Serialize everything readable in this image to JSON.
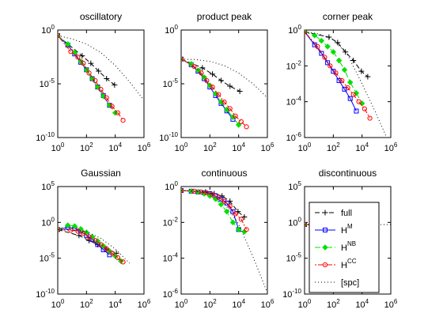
{
  "figure": {
    "legend": {
      "entries": [
        {
          "series": "full",
          "text": "full",
          "sup": ""
        },
        {
          "series": "HM",
          "text": "H",
          "sup": "M"
        },
        {
          "series": "HNB",
          "text": "H",
          "sup": "NB"
        },
        {
          "series": "HCC",
          "text": "H",
          "sup": "CC"
        },
        {
          "series": "spc",
          "text": "[spc]",
          "sup": ""
        }
      ]
    },
    "styles": {
      "full": {
        "color": "#000000",
        "dash": "6,3",
        "marker": "plus"
      },
      "HM": {
        "color": "#0000ff",
        "dash": "",
        "marker": "square"
      },
      "HNB": {
        "color": "#00e000",
        "dash": "7,3,2,3",
        "marker": "diamond"
      },
      "HCC": {
        "color": "#ff0000",
        "dash": "2,2,6,2",
        "marker": "circle"
      },
      "spc": {
        "color": "#000000",
        "dash": "1,3",
        "marker": "none"
      }
    }
  },
  "chart_data": [
    {
      "type": "line",
      "title": "oscillatory",
      "xscale": "log",
      "yscale": "log",
      "xlim": [
        1,
        1000000
      ],
      "ylim": [
        1e-10,
        1
      ],
      "xticks": [
        {
          "base": "10",
          "exp": "0"
        },
        {
          "base": "10",
          "exp": "2"
        },
        {
          "base": "10",
          "exp": "4"
        },
        {
          "base": "10",
          "exp": "6"
        }
      ],
      "yticks": [
        {
          "base": "10",
          "exp": "0",
          "value": 1
        },
        {
          "base": "10",
          "exp": "-5",
          "value": 1e-05
        },
        {
          "base": "10",
          "exp": "-10",
          "value": 1e-10
        }
      ],
      "series": [
        {
          "key": "full",
          "x": [
            1,
            50,
            200,
            700,
            2500,
            9000
          ],
          "y": [
            0.3,
            0.004,
            0.0008,
            0.00015,
            3e-05,
            8e-06
          ]
        },
        {
          "key": "HM",
          "x": [
            1,
            5,
            15,
            40,
            100,
            250,
            600,
            1500,
            4000
          ],
          "y": [
            0.3,
            0.04,
            0.006,
            0.001,
            0.0002,
            3e-05,
            5e-06,
            8e-07,
            1e-07
          ]
        },
        {
          "key": "HNB",
          "x": [
            1,
            5,
            15,
            40,
            100,
            250,
            600,
            1500,
            4000,
            10000
          ],
          "y": [
            0.3,
            0.05,
            0.008,
            0.0012,
            0.0002,
            3e-05,
            5e-06,
            7e-07,
            1e-07,
            2e-08
          ]
        },
        {
          "key": "HCC",
          "x": [
            1,
            8,
            25,
            60,
            150,
            400,
            1000,
            2500,
            6000,
            15000,
            35000
          ],
          "y": [
            0.3,
            0.01,
            0.003,
            0.0008,
            0.0001,
            2e-05,
            3e-06,
            5e-07,
            8e-08,
            2e-08,
            4e-09
          ]
        },
        {
          "key": "spc",
          "x": [
            1,
            10,
            100,
            1000,
            10000,
            100000,
            1000000
          ],
          "y": [
            0.3,
            0.15,
            0.05,
            0.008,
            0.0005,
            1.5e-05,
            3e-07
          ]
        }
      ]
    },
    {
      "type": "line",
      "title": "product peak",
      "xscale": "log",
      "yscale": "log",
      "xlim": [
        1,
        1000000
      ],
      "ylim": [
        1e-10,
        1
      ],
      "xticks": [
        {
          "base": "10",
          "exp": "0"
        },
        {
          "base": "10",
          "exp": "2"
        },
        {
          "base": "10",
          "exp": "4"
        },
        {
          "base": "10",
          "exp": "6"
        }
      ],
      "yticks": [
        {
          "base": "10",
          "exp": "0",
          "value": 1
        },
        {
          "base": "10",
          "exp": "-5",
          "value": 1e-05
        },
        {
          "base": "10",
          "exp": "-10",
          "value": 1e-10
        }
      ],
      "series": [
        {
          "key": "full",
          "x": [
            1,
            30,
            150,
            600,
            2500,
            12000
          ],
          "y": [
            0.002,
            0.0003,
            8e-05,
            2e-05,
            6e-06,
            2e-06
          ]
        },
        {
          "key": "HM",
          "x": [
            1,
            5,
            15,
            40,
            100,
            250,
            600,
            1500,
            4000
          ],
          "y": [
            0.002,
            0.0006,
            0.00015,
            3e-05,
            5e-06,
            8e-07,
            1.5e-07,
            3e-08,
            5e-09
          ]
        },
        {
          "key": "HNB",
          "x": [
            1,
            5,
            15,
            40,
            100,
            250,
            600,
            1500,
            4000,
            10000
          ],
          "y": [
            0.002,
            0.0007,
            0.00018,
            4e-05,
            7e-06,
            1.2e-06,
            2e-07,
            4e-08,
            8e-09,
            1.5e-09
          ]
        },
        {
          "key": "HCC",
          "x": [
            1,
            8,
            25,
            60,
            150,
            400,
            1000,
            2500,
            6000,
            15000,
            35000
          ],
          "y": [
            0.002,
            0.0004,
            0.0001,
            2e-05,
            5e-06,
            1e-06,
            2e-07,
            5e-08,
            1e-08,
            3e-09,
            1e-09
          ]
        },
        {
          "key": "spc",
          "x": [
            1,
            10,
            100,
            1000,
            10000,
            100000,
            1000000
          ],
          "y": [
            0.002,
            0.0018,
            0.0012,
            0.0005,
            0.0001,
            1e-05,
            5e-07
          ]
        }
      ]
    },
    {
      "type": "line",
      "title": "corner peak",
      "xscale": "log",
      "yscale": "log",
      "xlim": [
        1,
        1000000
      ],
      "ylim": [
        1e-06,
        1
      ],
      "xticks": [
        {
          "base": "10",
          "exp": "0"
        },
        {
          "base": "10",
          "exp": "2"
        },
        {
          "base": "10",
          "exp": "4"
        },
        {
          "base": "10",
          "exp": "6"
        }
      ],
      "yticks": [
        {
          "base": "10",
          "exp": "0",
          "value": 1
        },
        {
          "base": "10",
          "exp": "-2",
          "value": 0.01
        },
        {
          "base": "10",
          "exp": "-4",
          "value": 0.0001
        },
        {
          "base": "10",
          "exp": "-6",
          "value": 1e-06
        }
      ],
      "series": [
        {
          "key": "full",
          "x": [
            1,
            50,
            200,
            700,
            2500,
            9000,
            25000
          ],
          "y": [
            0.8,
            0.4,
            0.2,
            0.06,
            0.02,
            0.005,
            0.0025
          ]
        },
        {
          "key": "HM",
          "x": [
            1,
            5,
            15,
            40,
            100,
            250,
            600,
            1500,
            4000
          ],
          "y": [
            0.8,
            0.15,
            0.05,
            0.015,
            0.005,
            0.0015,
            0.0005,
            0.00015,
            3e-05
          ]
        },
        {
          "key": "HNB",
          "x": [
            1,
            5,
            15,
            40,
            100,
            250,
            600,
            1500,
            4000,
            10000
          ],
          "y": [
            0.8,
            0.5,
            0.25,
            0.12,
            0.06,
            0.02,
            0.006,
            0.0012,
            0.0003,
            8e-05
          ]
        },
        {
          "key": "HCC",
          "x": [
            1,
            8,
            25,
            60,
            150,
            400,
            1000,
            2500,
            6000,
            15000,
            35000
          ],
          "y": [
            0.8,
            0.12,
            0.03,
            0.01,
            0.004,
            0.0015,
            0.0006,
            0.00025,
            0.0001,
            4e-05,
            1.2e-05
          ]
        },
        {
          "key": "spc",
          "x": [
            1,
            10,
            100,
            1000,
            10000,
            100000,
            1000000
          ],
          "y": [
            0.8,
            0.6,
            0.3,
            0.04,
            0.001,
            2e-05,
            3e-07
          ]
        }
      ]
    },
    {
      "type": "line",
      "title": "Gaussian",
      "xscale": "log",
      "yscale": "log",
      "xlim": [
        1,
        1000000
      ],
      "ylim": [
        1e-10,
        100000
      ],
      "xticks": [
        {
          "base": "10",
          "exp": "0"
        },
        {
          "base": "10",
          "exp": "2"
        },
        {
          "base": "10",
          "exp": "4"
        },
        {
          "base": "10",
          "exp": "6"
        }
      ],
      "yticks": [
        {
          "base": "10",
          "exp": "5",
          "value": 100000
        },
        {
          "base": "10",
          "exp": "0",
          "value": 1
        },
        {
          "base": "10",
          "exp": "-5",
          "value": 1e-05
        },
        {
          "base": "10",
          "exp": "-10",
          "value": 1e-10
        }
      ],
      "series": [
        {
          "key": "full",
          "x": [
            1,
            30,
            150,
            600,
            2500,
            12000
          ],
          "y": [
            0.1,
            0.015,
            0.003,
            0.0008,
            0.0002,
            5e-05
          ]
        },
        {
          "key": "HM",
          "x": [
            1,
            5,
            15,
            40,
            100,
            250,
            600,
            1500,
            4000
          ],
          "y": [
            0.1,
            0.2,
            0.15,
            0.06,
            0.015,
            0.004,
            0.0008,
            0.00015,
            3e-05
          ]
        },
        {
          "key": "HNB",
          "x": [
            1,
            5,
            15,
            40,
            100,
            250,
            600,
            1500,
            4000,
            10000,
            25000
          ],
          "y": [
            0.1,
            0.4,
            0.3,
            0.12,
            0.04,
            0.01,
            0.0025,
            0.0005,
            0.0001,
            2e-05,
            4e-06
          ]
        },
        {
          "key": "HCC",
          "x": [
            1,
            8,
            25,
            60,
            150,
            400,
            1000,
            2500,
            6000,
            15000,
            35000
          ],
          "y": [
            0.1,
            0.08,
            0.06,
            0.03,
            0.01,
            0.003,
            0.0008,
            0.0002,
            5e-05,
            1.2e-05,
            3e-06
          ]
        },
        {
          "key": "spc",
          "x": [
            1,
            10,
            100,
            1000,
            10000,
            100000
          ],
          "y": [
            0.1,
            0.09,
            0.05,
            0.006,
            0.0002,
            2e-06
          ]
        }
      ]
    },
    {
      "type": "line",
      "title": "continuous",
      "xscale": "log",
      "yscale": "log",
      "xlim": [
        1,
        1000000
      ],
      "ylim": [
        1e-06,
        1
      ],
      "xticks": [
        {
          "base": "10",
          "exp": "0"
        },
        {
          "base": "10",
          "exp": "2"
        },
        {
          "base": "10",
          "exp": "4"
        },
        {
          "base": "10",
          "exp": "6"
        }
      ],
      "yticks": [
        {
          "base": "10",
          "exp": "0",
          "value": 1
        },
        {
          "base": "10",
          "exp": "-2",
          "value": 0.01
        },
        {
          "base": "10",
          "exp": "-4",
          "value": 0.0001
        },
        {
          "base": "10",
          "exp": "-6",
          "value": 1e-06
        }
      ],
      "series": [
        {
          "key": "full",
          "x": [
            1,
            50,
            200,
            700,
            2500,
            9000,
            25000
          ],
          "y": [
            0.6,
            0.5,
            0.4,
            0.3,
            0.15,
            0.04,
            0.02
          ]
        },
        {
          "key": "HM",
          "x": [
            1,
            5,
            15,
            40,
            100,
            250,
            600,
            1500,
            4000,
            10000
          ],
          "y": [
            0.6,
            0.55,
            0.5,
            0.45,
            0.4,
            0.3,
            0.2,
            0.12,
            0.04,
            0.004
          ]
        },
        {
          "key": "HNB",
          "x": [
            1,
            5,
            15,
            40,
            100,
            250,
            600,
            1500,
            4000,
            10000,
            25000
          ],
          "y": [
            0.6,
            0.55,
            0.5,
            0.4,
            0.3,
            0.2,
            0.1,
            0.04,
            0.01,
            0.004,
            0.003
          ]
        },
        {
          "key": "HCC",
          "x": [
            1,
            8,
            25,
            60,
            150,
            400,
            1000,
            2500,
            6000,
            15000,
            35000
          ],
          "y": [
            0.6,
            0.55,
            0.5,
            0.45,
            0.35,
            0.25,
            0.15,
            0.08,
            0.03,
            0.015,
            0.004
          ]
        },
        {
          "key": "spc",
          "x": [
            1,
            10,
            100,
            1000,
            10000,
            100000,
            1000000
          ],
          "y": [
            0.6,
            0.55,
            0.4,
            0.12,
            0.008,
            0.00012,
            1.2e-06
          ]
        }
      ]
    },
    {
      "type": "line",
      "title": "discontinuous",
      "xscale": "log",
      "yscale": "log",
      "xlim": [
        1,
        1000000
      ],
      "ylim": [
        1e-10,
        100000
      ],
      "xticks": [
        {
          "base": "10",
          "exp": "0"
        },
        {
          "base": "10",
          "exp": "2"
        },
        {
          "base": "10",
          "exp": "4"
        },
        {
          "base": "10",
          "exp": "6"
        }
      ],
      "yticks": [
        {
          "base": "10",
          "exp": "5",
          "value": 100000
        },
        {
          "base": "10",
          "exp": "0",
          "value": 1
        },
        {
          "base": "10",
          "exp": "-5",
          "value": 1e-05
        },
        {
          "base": "10",
          "exp": "-10",
          "value": 1e-10
        }
      ],
      "series": [
        {
          "key": "full",
          "x": [
            1,
            10,
            100,
            1000,
            10000,
            40000
          ],
          "y": [
            0.5,
            0.5,
            0.5,
            0.5,
            0.5,
            0.5
          ]
        },
        {
          "key": "HM",
          "x": [
            1,
            10,
            100,
            1000,
            10000,
            40000
          ],
          "y": [
            0.5,
            0.5,
            0.5,
            0.5,
            0.5,
            0.5
          ]
        },
        {
          "key": "HNB",
          "x": [
            1,
            10,
            100,
            1000,
            10000,
            40000
          ],
          "y": [
            0.5,
            0.5,
            0.5,
            0.5,
            0.5,
            0.5
          ]
        },
        {
          "key": "HCC",
          "x": [
            1,
            10,
            100,
            1000,
            10000,
            40000
          ],
          "y": [
            0.5,
            0.5,
            0.5,
            0.5,
            0.5,
            0.5
          ]
        },
        {
          "key": "spc",
          "x": [
            1,
            100,
            10000,
            1000000
          ],
          "y": [
            0.5,
            0.5,
            0.5,
            0.5
          ]
        }
      ]
    }
  ]
}
